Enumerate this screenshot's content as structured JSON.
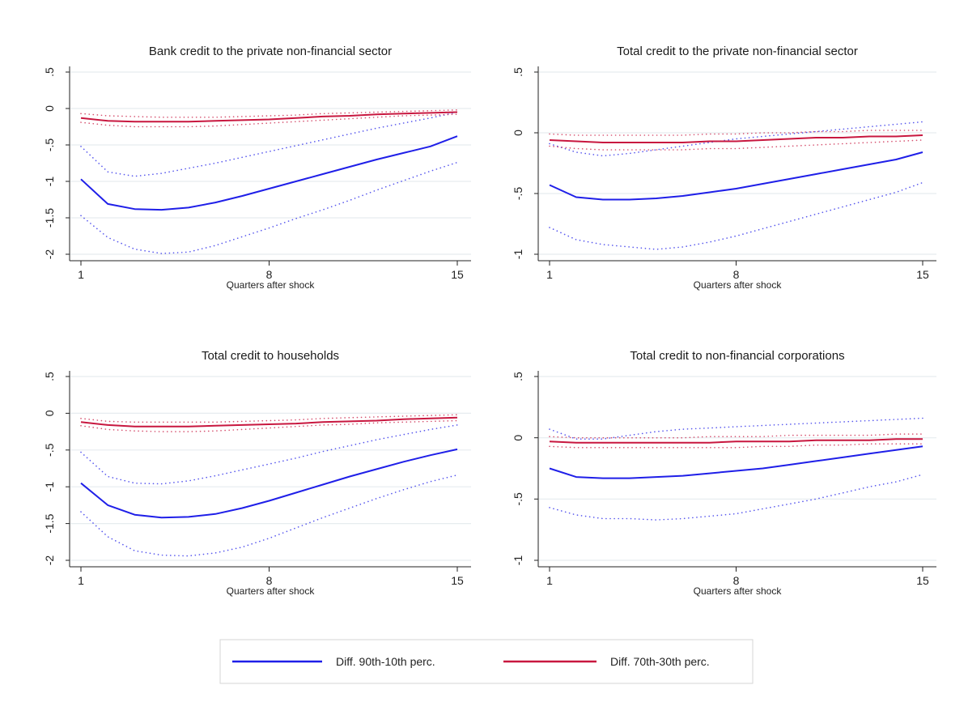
{
  "chart_data": [
    {
      "type": "line",
      "title": "Bank credit to the private non-financial sector",
      "xlabel": "Quarters after shock",
      "ylabel": "",
      "xlim": [
        1,
        15
      ],
      "ylim": [
        -2,
        0.5
      ],
      "xticks": [
        1,
        8,
        15
      ],
      "yticks": [
        0.5,
        0,
        -0.5,
        -1,
        -1.5,
        -2
      ],
      "ytick_labels": [
        ".5",
        "0",
        "-.5",
        "-1",
        "-1.5",
        "-2"
      ],
      "grid": true,
      "series": [
        {
          "name": "Diff. 90th-10th perc.",
          "color": "#1f1fe8",
          "style": "solid",
          "x": [
            1,
            2,
            3,
            4,
            5,
            6,
            7,
            8,
            9,
            10,
            11,
            12,
            13,
            14,
            15
          ],
          "values": [
            -0.97,
            -1.31,
            -1.38,
            -1.39,
            -1.36,
            -1.29,
            -1.2,
            -1.1,
            -1.0,
            -0.9,
            -0.8,
            -0.7,
            -0.61,
            -0.52,
            -0.38
          ]
        },
        {
          "name": "",
          "color": "#1f1fe8",
          "style": "dotted",
          "x": [
            1,
            2,
            3,
            4,
            5,
            6,
            7,
            8,
            9,
            10,
            11,
            12,
            13,
            14,
            15
          ],
          "values": [
            -0.52,
            -0.87,
            -0.93,
            -0.89,
            -0.82,
            -0.75,
            -0.67,
            -0.59,
            -0.51,
            -0.43,
            -0.35,
            -0.27,
            -0.2,
            -0.13,
            -0.05
          ]
        },
        {
          "name": "",
          "color": "#1f1fe8",
          "style": "dotted",
          "x": [
            1,
            2,
            3,
            4,
            5,
            6,
            7,
            8,
            9,
            10,
            11,
            12,
            13,
            14,
            15
          ],
          "values": [
            -1.47,
            -1.77,
            -1.93,
            -1.99,
            -1.97,
            -1.88,
            -1.76,
            -1.64,
            -1.51,
            -1.39,
            -1.26,
            -1.12,
            -0.99,
            -0.86,
            -0.74
          ]
        },
        {
          "name": "Diff. 70th-30th perc.",
          "color": "#c8173f",
          "style": "solid",
          "x": [
            1,
            2,
            3,
            4,
            5,
            6,
            7,
            8,
            9,
            10,
            11,
            12,
            13,
            14,
            15
          ],
          "values": [
            -0.13,
            -0.17,
            -0.18,
            -0.18,
            -0.18,
            -0.17,
            -0.16,
            -0.15,
            -0.13,
            -0.11,
            -0.1,
            -0.08,
            -0.07,
            -0.06,
            -0.05
          ]
        },
        {
          "name": "",
          "color": "#c8173f",
          "style": "dotted",
          "x": [
            1,
            2,
            3,
            4,
            5,
            6,
            7,
            8,
            9,
            10,
            11,
            12,
            13,
            14,
            15
          ],
          "values": [
            -0.07,
            -0.1,
            -0.11,
            -0.12,
            -0.12,
            -0.12,
            -0.11,
            -0.1,
            -0.09,
            -0.07,
            -0.06,
            -0.05,
            -0.04,
            -0.03,
            -0.02
          ]
        },
        {
          "name": "",
          "color": "#c8173f",
          "style": "dotted",
          "x": [
            1,
            2,
            3,
            4,
            5,
            6,
            7,
            8,
            9,
            10,
            11,
            12,
            13,
            14,
            15
          ],
          "values": [
            -0.19,
            -0.23,
            -0.25,
            -0.25,
            -0.25,
            -0.24,
            -0.22,
            -0.2,
            -0.18,
            -0.16,
            -0.14,
            -0.12,
            -0.1,
            -0.09,
            -0.08
          ]
        }
      ]
    },
    {
      "type": "line",
      "title": "Total credit to the private non-financial sector",
      "xlabel": "Quarters after shock",
      "ylabel": "",
      "xlim": [
        1,
        15
      ],
      "ylim": [
        -1,
        0.5
      ],
      "xticks": [
        1,
        8,
        15
      ],
      "yticks": [
        0.5,
        0,
        -0.5,
        -1
      ],
      "ytick_labels": [
        ".5",
        "0",
        "-.5",
        "-1"
      ],
      "grid": true,
      "series": [
        {
          "name": "Diff. 90th-10th perc.",
          "color": "#1f1fe8",
          "style": "solid",
          "x": [
            1,
            2,
            3,
            4,
            5,
            6,
            7,
            8,
            9,
            10,
            11,
            12,
            13,
            14,
            15
          ],
          "values": [
            -0.43,
            -0.53,
            -0.55,
            -0.55,
            -0.54,
            -0.52,
            -0.49,
            -0.46,
            -0.42,
            -0.38,
            -0.34,
            -0.3,
            -0.26,
            -0.22,
            -0.16
          ]
        },
        {
          "name": "",
          "color": "#1f1fe8",
          "style": "dotted",
          "x": [
            1,
            2,
            3,
            4,
            5,
            6,
            7,
            8,
            9,
            10,
            11,
            12,
            13,
            14,
            15
          ],
          "values": [
            -0.09,
            -0.16,
            -0.19,
            -0.17,
            -0.14,
            -0.11,
            -0.08,
            -0.05,
            -0.03,
            -0.01,
            0.01,
            0.03,
            0.05,
            0.07,
            0.09
          ]
        },
        {
          "name": "",
          "color": "#1f1fe8",
          "style": "dotted",
          "x": [
            1,
            2,
            3,
            4,
            5,
            6,
            7,
            8,
            9,
            10,
            11,
            12,
            13,
            14,
            15
          ],
          "values": [
            -0.78,
            -0.88,
            -0.92,
            -0.94,
            -0.96,
            -0.94,
            -0.9,
            -0.85,
            -0.79,
            -0.73,
            -0.67,
            -0.61,
            -0.55,
            -0.49,
            -0.41
          ]
        },
        {
          "name": "Diff. 70th-30th perc.",
          "color": "#c8173f",
          "style": "solid",
          "x": [
            1,
            2,
            3,
            4,
            5,
            6,
            7,
            8,
            9,
            10,
            11,
            12,
            13,
            14,
            15
          ],
          "values": [
            -0.06,
            -0.07,
            -0.08,
            -0.08,
            -0.08,
            -0.08,
            -0.07,
            -0.07,
            -0.06,
            -0.05,
            -0.04,
            -0.04,
            -0.03,
            -0.03,
            -0.02
          ]
        },
        {
          "name": "",
          "color": "#c8173f",
          "style": "dotted",
          "x": [
            1,
            2,
            3,
            4,
            5,
            6,
            7,
            8,
            9,
            10,
            11,
            12,
            13,
            14,
            15
          ],
          "values": [
            -0.01,
            -0.02,
            -0.02,
            -0.02,
            -0.02,
            -0.02,
            -0.01,
            -0.01,
            0.0,
            0.0,
            0.01,
            0.01,
            0.02,
            0.02,
            0.02
          ]
        },
        {
          "name": "",
          "color": "#c8173f",
          "style": "dotted",
          "x": [
            1,
            2,
            3,
            4,
            5,
            6,
            7,
            8,
            9,
            10,
            11,
            12,
            13,
            14,
            15
          ],
          "values": [
            -0.11,
            -0.13,
            -0.14,
            -0.14,
            -0.14,
            -0.14,
            -0.13,
            -0.13,
            -0.12,
            -0.11,
            -0.1,
            -0.09,
            -0.08,
            -0.07,
            -0.06
          ]
        }
      ]
    },
    {
      "type": "line",
      "title": "Total credit to households",
      "xlabel": "Quarters after shock",
      "ylabel": "",
      "xlim": [
        1,
        15
      ],
      "ylim": [
        -2,
        0.5
      ],
      "xticks": [
        1,
        8,
        15
      ],
      "yticks": [
        0.5,
        0,
        -0.5,
        -1,
        -1.5,
        -2
      ],
      "ytick_labels": [
        ".5",
        "0",
        "-.5",
        "-1",
        "-1.5",
        "-2"
      ],
      "grid": true,
      "series": [
        {
          "name": "Diff. 90th-10th perc.",
          "color": "#1f1fe8",
          "style": "solid",
          "x": [
            1,
            2,
            3,
            4,
            5,
            6,
            7,
            8,
            9,
            10,
            11,
            12,
            13,
            14,
            15
          ],
          "values": [
            -0.95,
            -1.25,
            -1.38,
            -1.42,
            -1.41,
            -1.37,
            -1.29,
            -1.19,
            -1.08,
            -0.97,
            -0.86,
            -0.76,
            -0.66,
            -0.57,
            -0.49
          ]
        },
        {
          "name": "",
          "color": "#1f1fe8",
          "style": "dotted",
          "x": [
            1,
            2,
            3,
            4,
            5,
            6,
            7,
            8,
            9,
            10,
            11,
            12,
            13,
            14,
            15
          ],
          "values": [
            -0.53,
            -0.86,
            -0.95,
            -0.96,
            -0.92,
            -0.85,
            -0.77,
            -0.69,
            -0.61,
            -0.52,
            -0.44,
            -0.36,
            -0.29,
            -0.22,
            -0.16
          ]
        },
        {
          "name": "",
          "color": "#1f1fe8",
          "style": "dotted",
          "x": [
            1,
            2,
            3,
            4,
            5,
            6,
            7,
            8,
            9,
            10,
            11,
            12,
            13,
            14,
            15
          ],
          "values": [
            -1.34,
            -1.68,
            -1.87,
            -1.93,
            -1.94,
            -1.9,
            -1.82,
            -1.7,
            -1.56,
            -1.42,
            -1.29,
            -1.16,
            -1.04,
            -0.93,
            -0.84
          ]
        },
        {
          "name": "Diff. 70th-30th perc.",
          "color": "#c8173f",
          "style": "solid",
          "x": [
            1,
            2,
            3,
            4,
            5,
            6,
            7,
            8,
            9,
            10,
            11,
            12,
            13,
            14,
            15
          ],
          "values": [
            -0.12,
            -0.16,
            -0.18,
            -0.18,
            -0.18,
            -0.17,
            -0.16,
            -0.15,
            -0.14,
            -0.12,
            -0.11,
            -0.1,
            -0.08,
            -0.07,
            -0.06
          ]
        },
        {
          "name": "",
          "color": "#c8173f",
          "style": "dotted",
          "x": [
            1,
            2,
            3,
            4,
            5,
            6,
            7,
            8,
            9,
            10,
            11,
            12,
            13,
            14,
            15
          ],
          "values": [
            -0.07,
            -0.11,
            -0.12,
            -0.12,
            -0.12,
            -0.12,
            -0.11,
            -0.1,
            -0.09,
            -0.07,
            -0.06,
            -0.05,
            -0.04,
            -0.03,
            -0.02
          ]
        },
        {
          "name": "",
          "color": "#c8173f",
          "style": "dotted",
          "x": [
            1,
            2,
            3,
            4,
            5,
            6,
            7,
            8,
            9,
            10,
            11,
            12,
            13,
            14,
            15
          ],
          "values": [
            -0.17,
            -0.22,
            -0.24,
            -0.25,
            -0.25,
            -0.24,
            -0.22,
            -0.2,
            -0.18,
            -0.16,
            -0.15,
            -0.13,
            -0.12,
            -0.11,
            -0.1
          ]
        }
      ]
    },
    {
      "type": "line",
      "title": "Total credit to non-financial corporations",
      "xlabel": "Quarters after shock",
      "ylabel": "",
      "xlim": [
        1,
        15
      ],
      "ylim": [
        -1,
        0.5
      ],
      "xticks": [
        1,
        8,
        15
      ],
      "yticks": [
        0.5,
        0,
        -0.5,
        -1
      ],
      "ytick_labels": [
        ".5",
        "0",
        "-.5",
        "-1"
      ],
      "grid": true,
      "series": [
        {
          "name": "Diff. 90th-10th perc.",
          "color": "#1f1fe8",
          "style": "solid",
          "x": [
            1,
            2,
            3,
            4,
            5,
            6,
            7,
            8,
            9,
            10,
            11,
            12,
            13,
            14,
            15
          ],
          "values": [
            -0.25,
            -0.32,
            -0.33,
            -0.33,
            -0.32,
            -0.31,
            -0.29,
            -0.27,
            -0.25,
            -0.22,
            -0.19,
            -0.16,
            -0.13,
            -0.1,
            -0.07
          ]
        },
        {
          "name": "",
          "color": "#1f1fe8",
          "style": "dotted",
          "x": [
            1,
            2,
            3,
            4,
            5,
            6,
            7,
            8,
            9,
            10,
            11,
            12,
            13,
            14,
            15
          ],
          "values": [
            0.07,
            -0.01,
            -0.01,
            0.02,
            0.05,
            0.07,
            0.08,
            0.09,
            0.1,
            0.11,
            0.12,
            0.13,
            0.14,
            0.15,
            0.16
          ]
        },
        {
          "name": "",
          "color": "#1f1fe8",
          "style": "dotted",
          "x": [
            1,
            2,
            3,
            4,
            5,
            6,
            7,
            8,
            9,
            10,
            11,
            12,
            13,
            14,
            15
          ],
          "values": [
            -0.57,
            -0.63,
            -0.66,
            -0.66,
            -0.67,
            -0.66,
            -0.64,
            -0.62,
            -0.58,
            -0.54,
            -0.5,
            -0.45,
            -0.4,
            -0.36,
            -0.3
          ]
        },
        {
          "name": "Diff. 70th-30th perc.",
          "color": "#c8173f",
          "style": "solid",
          "x": [
            1,
            2,
            3,
            4,
            5,
            6,
            7,
            8,
            9,
            10,
            11,
            12,
            13,
            14,
            15
          ],
          "values": [
            -0.03,
            -0.04,
            -0.04,
            -0.04,
            -0.04,
            -0.04,
            -0.04,
            -0.03,
            -0.03,
            -0.03,
            -0.02,
            -0.02,
            -0.02,
            -0.01,
            -0.01
          ]
        },
        {
          "name": "",
          "color": "#c8173f",
          "style": "dotted",
          "x": [
            1,
            2,
            3,
            4,
            5,
            6,
            7,
            8,
            9,
            10,
            11,
            12,
            13,
            14,
            15
          ],
          "values": [
            0.01,
            0.0,
            0.0,
            0.0,
            0.0,
            0.0,
            0.01,
            0.01,
            0.01,
            0.02,
            0.02,
            0.02,
            0.02,
            0.03,
            0.03
          ]
        },
        {
          "name": "",
          "color": "#c8173f",
          "style": "dotted",
          "x": [
            1,
            2,
            3,
            4,
            5,
            6,
            7,
            8,
            9,
            10,
            11,
            12,
            13,
            14,
            15
          ],
          "values": [
            -0.07,
            -0.08,
            -0.08,
            -0.08,
            -0.08,
            -0.08,
            -0.08,
            -0.08,
            -0.07,
            -0.07,
            -0.06,
            -0.06,
            -0.05,
            -0.05,
            -0.05
          ]
        }
      ]
    }
  ],
  "legend": {
    "items": [
      {
        "label": "Diff. 90th-10th perc.",
        "color": "#1f1fe8"
      },
      {
        "label": "Diff. 70th-30th perc.",
        "color": "#c8173f"
      }
    ]
  }
}
